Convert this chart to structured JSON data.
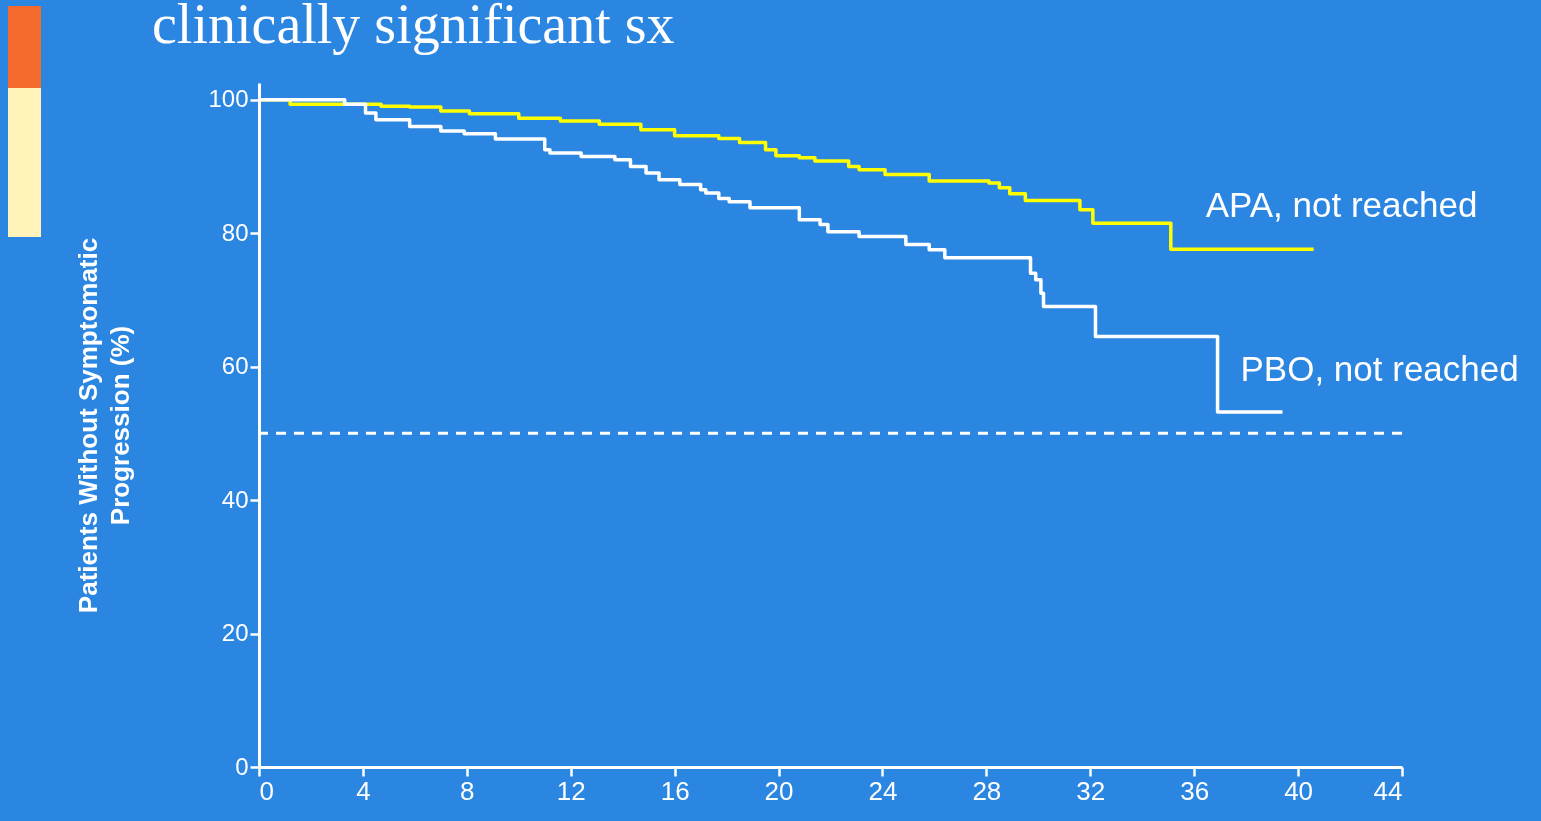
{
  "chart_data": {
    "type": "step",
    "title": "clinically significant sx",
    "ylabel": "Patients Without Symptomatic\nProgression (%)",
    "xlim": [
      0,
      44
    ],
    "xticks": [
      0,
      4,
      8,
      12,
      16,
      20,
      24,
      28,
      32,
      36,
      40,
      44
    ],
    "ylim": [
      0,
      102.5
    ],
    "yticks": [
      0,
      20,
      40,
      60,
      80,
      100
    ],
    "grid": false,
    "series": [
      {
        "name": "APA, not reached",
        "color": "#ffff00",
        "x": [
          0,
          1.2,
          4.7,
          5.8,
          7,
          8.1,
          10,
          11.6,
          13.1,
          14.7,
          16,
          17.7,
          18.5,
          19.5,
          19.9,
          20.8,
          21.4,
          22.7,
          23.1,
          24.1,
          25.8,
          28.1,
          28.5,
          28.9,
          29.5,
          31.6,
          32.1,
          35.1,
          40.6
        ],
        "values": [
          100,
          99.3,
          99,
          98.9,
          98.3,
          97.9,
          97.2,
          96.8,
          96.3,
          95.5,
          94.6,
          94.2,
          93.6,
          92.5,
          91.6,
          91.3,
          90.8,
          90,
          89.5,
          88.8,
          87.8,
          87.5,
          86.8,
          85.9,
          84.9,
          83.5,
          81.5,
          77.6,
          77.6
        ]
      },
      {
        "name": "PBO, not reached",
        "color": "#ffffff",
        "x": [
          0,
          3.3,
          4.1,
          4.5,
          5.8,
          7,
          7.9,
          9.1,
          11,
          11.2,
          12.4,
          13.7,
          14.3,
          14.9,
          15.4,
          16.2,
          17,
          17.2,
          17.7,
          18.1,
          18.9,
          20.8,
          21.6,
          21.9,
          23.1,
          24.9,
          25.8,
          26.4,
          29.7,
          29.9,
          30.1,
          30.2,
          32.2,
          36.9,
          39.4
        ],
        "values": [
          100,
          99.3,
          98,
          97,
          96,
          95.3,
          94.9,
          94.1,
          92.5,
          92,
          91.5,
          91,
          90,
          89,
          88,
          87.3,
          86.5,
          86,
          85.2,
          84.7,
          83.8,
          82,
          81.3,
          80.2,
          79.5,
          78.3,
          77.5,
          76.3,
          74,
          73,
          71,
          69,
          64.5,
          53.2,
          53.2
        ]
      }
    ],
    "ref_lines": [
      {
        "axis": "y",
        "value": 50,
        "color": "#ffffff",
        "line_style": "dashed"
      }
    ]
  }
}
